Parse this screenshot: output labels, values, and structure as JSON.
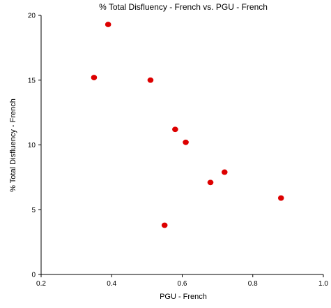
{
  "chart_data": {
    "type": "scatter",
    "title": "% Total Disfluency - French vs. PGU - French",
    "xlabel": "PGU - French",
    "ylabel": "% Total Disfluency - French",
    "xlim": [
      0.2,
      1.0
    ],
    "ylim": [
      0,
      20
    ],
    "x_ticks": [
      0.2,
      0.4,
      0.6,
      0.8,
      1.0
    ],
    "x_tick_labels": [
      "0.2",
      "0.4",
      "0.6",
      "0.8",
      "1.0"
    ],
    "y_ticks": [
      0,
      5,
      10,
      15,
      20
    ],
    "y_tick_labels": [
      "0",
      "5",
      "10",
      "15",
      "20"
    ],
    "grid": false,
    "legend": "none",
    "series": [
      {
        "color": "#dd0000",
        "points": [
          {
            "x": 0.39,
            "y": 19.3
          },
          {
            "x": 0.35,
            "y": 15.2
          },
          {
            "x": 0.51,
            "y": 15.0
          },
          {
            "x": 0.58,
            "y": 11.2
          },
          {
            "x": 0.61,
            "y": 10.2
          },
          {
            "x": 0.72,
            "y": 7.9
          },
          {
            "x": 0.68,
            "y": 7.1
          },
          {
            "x": 0.88,
            "y": 5.9
          },
          {
            "x": 0.55,
            "y": 3.8
          }
        ]
      }
    ]
  }
}
